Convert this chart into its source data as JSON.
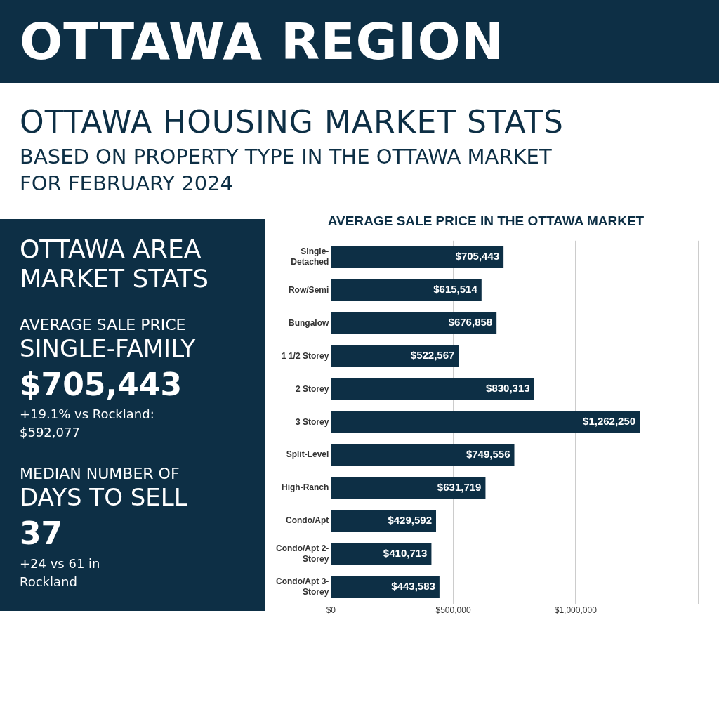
{
  "chart_data": [
    {
      "type": "other",
      "title": "OTTAWA REGION",
      "subtitle": "OTTAWA HOUSING MARKET STATS",
      "annotations": [
        "BASED ON PROPERTY TYPE IN THE OTTAWA MARKET",
        "FOR FEBRUARY 2024"
      ]
    },
    {
      "type": "other",
      "title": "OTTAWA AREA MARKET STATS",
      "annotations": [
        "AVERAGE SALE PRICE",
        "SINGLE-FAMILY",
        "$705,443",
        "+19.1% vs Rockland: $592,077",
        "MEDIAN NUMBER OF",
        "DAYS TO SELL",
        "37",
        "+24 vs 61 in Rockland"
      ]
    },
    {
      "type": "bar",
      "orientation": "horizontal",
      "title": "AVERAGE SALE PRICE IN THE OTTAWA MARKET",
      "categories": [
        "Single-Detached",
        "Row/Semi",
        "Bungalow",
        "1 1/2 Storey",
        "2 Storey",
        "3 Storey",
        "Split-Level",
        "High-Ranch",
        "Condo/Apt",
        "Condo/Apt 2-Storey",
        "Condo/Apt 3-Storey"
      ],
      "values": [
        705443,
        615514,
        676858,
        522567,
        830313,
        1262250,
        749556,
        631719,
        429592,
        410713,
        443583
      ],
      "value_labels": [
        "$705,443",
        "$615,514",
        "$676,858",
        "$522,567",
        "$830,313",
        "$1,262,250",
        "$749,556",
        "$631,719",
        "$429,592",
        "$410,713",
        "$443,583"
      ],
      "color": "#0d2f45",
      "xlim": [
        0,
        1500000
      ],
      "xticks": [
        {
          "value": 0,
          "label": "$0"
        },
        {
          "value": 500000,
          "label": "$500,000"
        },
        {
          "value": 1000000,
          "label": "$1,000,000"
        },
        {
          "value": 1500000,
          "label": null
        }
      ],
      "grid": "x"
    }
  ]
}
